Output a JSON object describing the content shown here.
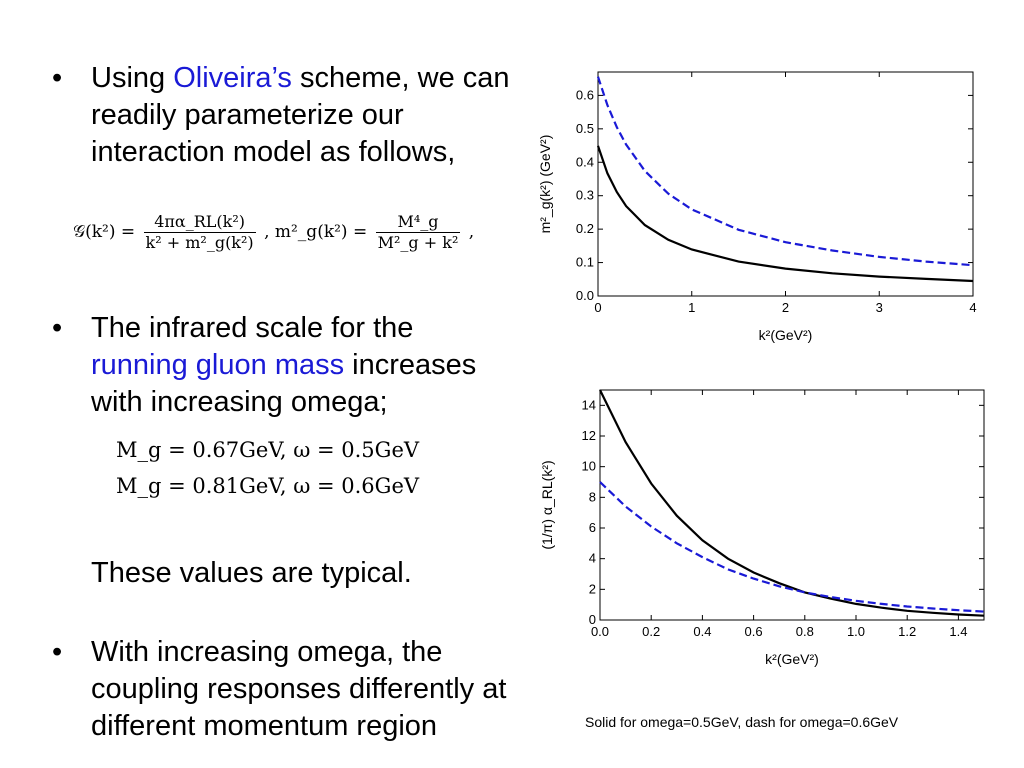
{
  "bullets": {
    "b1": {
      "dot": "•",
      "prefix": "Using ",
      "link": "Oliveira’s",
      "rest": " scheme, we can readily parameterize our interaction model as follows,"
    },
    "b2": {
      "dot": "•",
      "prefix": "The infrared scale for the ",
      "link": "running gluon mass",
      "rest": " increases with increasing omega;"
    },
    "b3": {
      "dot": "•",
      "text": "With increasing omega, the coupling responses differently at different momentum region"
    }
  },
  "typical_note": "These values are typical.",
  "formula_main": {
    "lhs": "𝒢(k²) =",
    "frac1_num": "4πα_RL(k²)",
    "frac1_den": "k² + m²_g(k²)",
    "mid": ",  m²_g(k²) =",
    "frac2_num": "M⁴_g",
    "frac2_den": "M²_g + k²",
    "end": ","
  },
  "mass_values": [
    "M_g = 0.67GeV, ω = 0.5GeV",
    "M_g = 0.81GeV, ω = 0.6GeV"
  ],
  "caption": "Solid for omega=0.5GeV, dash for omega=0.6GeV",
  "colors": {
    "link": "#1a1ad6",
    "solid_series": "#000000",
    "dash_series": "#1a1ad6"
  },
  "chart_data": [
    {
      "type": "line",
      "title": "",
      "xlabel": "k²(GeV²)",
      "ylabel": "m²_g(k²) (GeV²)",
      "xlim": [
        0,
        4
      ],
      "ylim": [
        0,
        0.67
      ],
      "x_ticks": [
        "0",
        "1",
        "2",
        "3",
        "4"
      ],
      "y_ticks": [
        "0.0",
        "0.1",
        "0.2",
        "0.3",
        "0.4",
        "0.5",
        "0.6"
      ],
      "grid": false,
      "series": [
        {
          "style": "solid",
          "x": [
            0,
            0.1,
            0.2,
            0.3,
            0.5,
            0.75,
            1,
            1.5,
            2,
            2.5,
            3,
            3.5,
            4
          ],
          "values": [
            0.449,
            0.367,
            0.311,
            0.269,
            0.212,
            0.168,
            0.139,
            0.103,
            0.082,
            0.068,
            0.058,
            0.051,
            0.045
          ]
        },
        {
          "style": "dashed",
          "x": [
            0,
            0.1,
            0.2,
            0.3,
            0.5,
            0.75,
            1,
            1.5,
            2,
            2.5,
            3,
            3.5,
            4
          ],
          "values": [
            0.656,
            0.571,
            0.505,
            0.453,
            0.374,
            0.306,
            0.259,
            0.198,
            0.161,
            0.136,
            0.117,
            0.103,
            0.092
          ]
        }
      ]
    },
    {
      "type": "line",
      "title": "",
      "xlabel": "k²(GeV²)",
      "ylabel": "(1/π) α_RL(k²)",
      "xlim": [
        0,
        1.5
      ],
      "ylim": [
        0,
        15
      ],
      "x_ticks": [
        "0.0",
        "0.2",
        "0.4",
        "0.6",
        "0.8",
        "1.0",
        "1.2",
        "1.4"
      ],
      "y_ticks": [
        "0",
        "2",
        "4",
        "6",
        "8",
        "10",
        "12",
        "14"
      ],
      "grid": false,
      "series": [
        {
          "style": "solid",
          "x": [
            0,
            0.1,
            0.2,
            0.3,
            0.4,
            0.5,
            0.6,
            0.7,
            0.8,
            0.9,
            1.0,
            1.1,
            1.2,
            1.3,
            1.4,
            1.5
          ],
          "values": [
            15.0,
            11.6,
            8.9,
            6.8,
            5.2,
            4.0,
            3.1,
            2.4,
            1.8,
            1.4,
            1.05,
            0.8,
            0.6,
            0.47,
            0.36,
            0.28
          ]
        },
        {
          "style": "dashed",
          "x": [
            0,
            0.1,
            0.2,
            0.3,
            0.4,
            0.5,
            0.6,
            0.7,
            0.8,
            0.9,
            1.0,
            1.1,
            1.2,
            1.3,
            1.4,
            1.5
          ],
          "values": [
            9.0,
            7.4,
            6.1,
            5.0,
            4.1,
            3.3,
            2.7,
            2.2,
            1.8,
            1.5,
            1.25,
            1.05,
            0.88,
            0.75,
            0.64,
            0.55
          ]
        }
      ]
    }
  ]
}
